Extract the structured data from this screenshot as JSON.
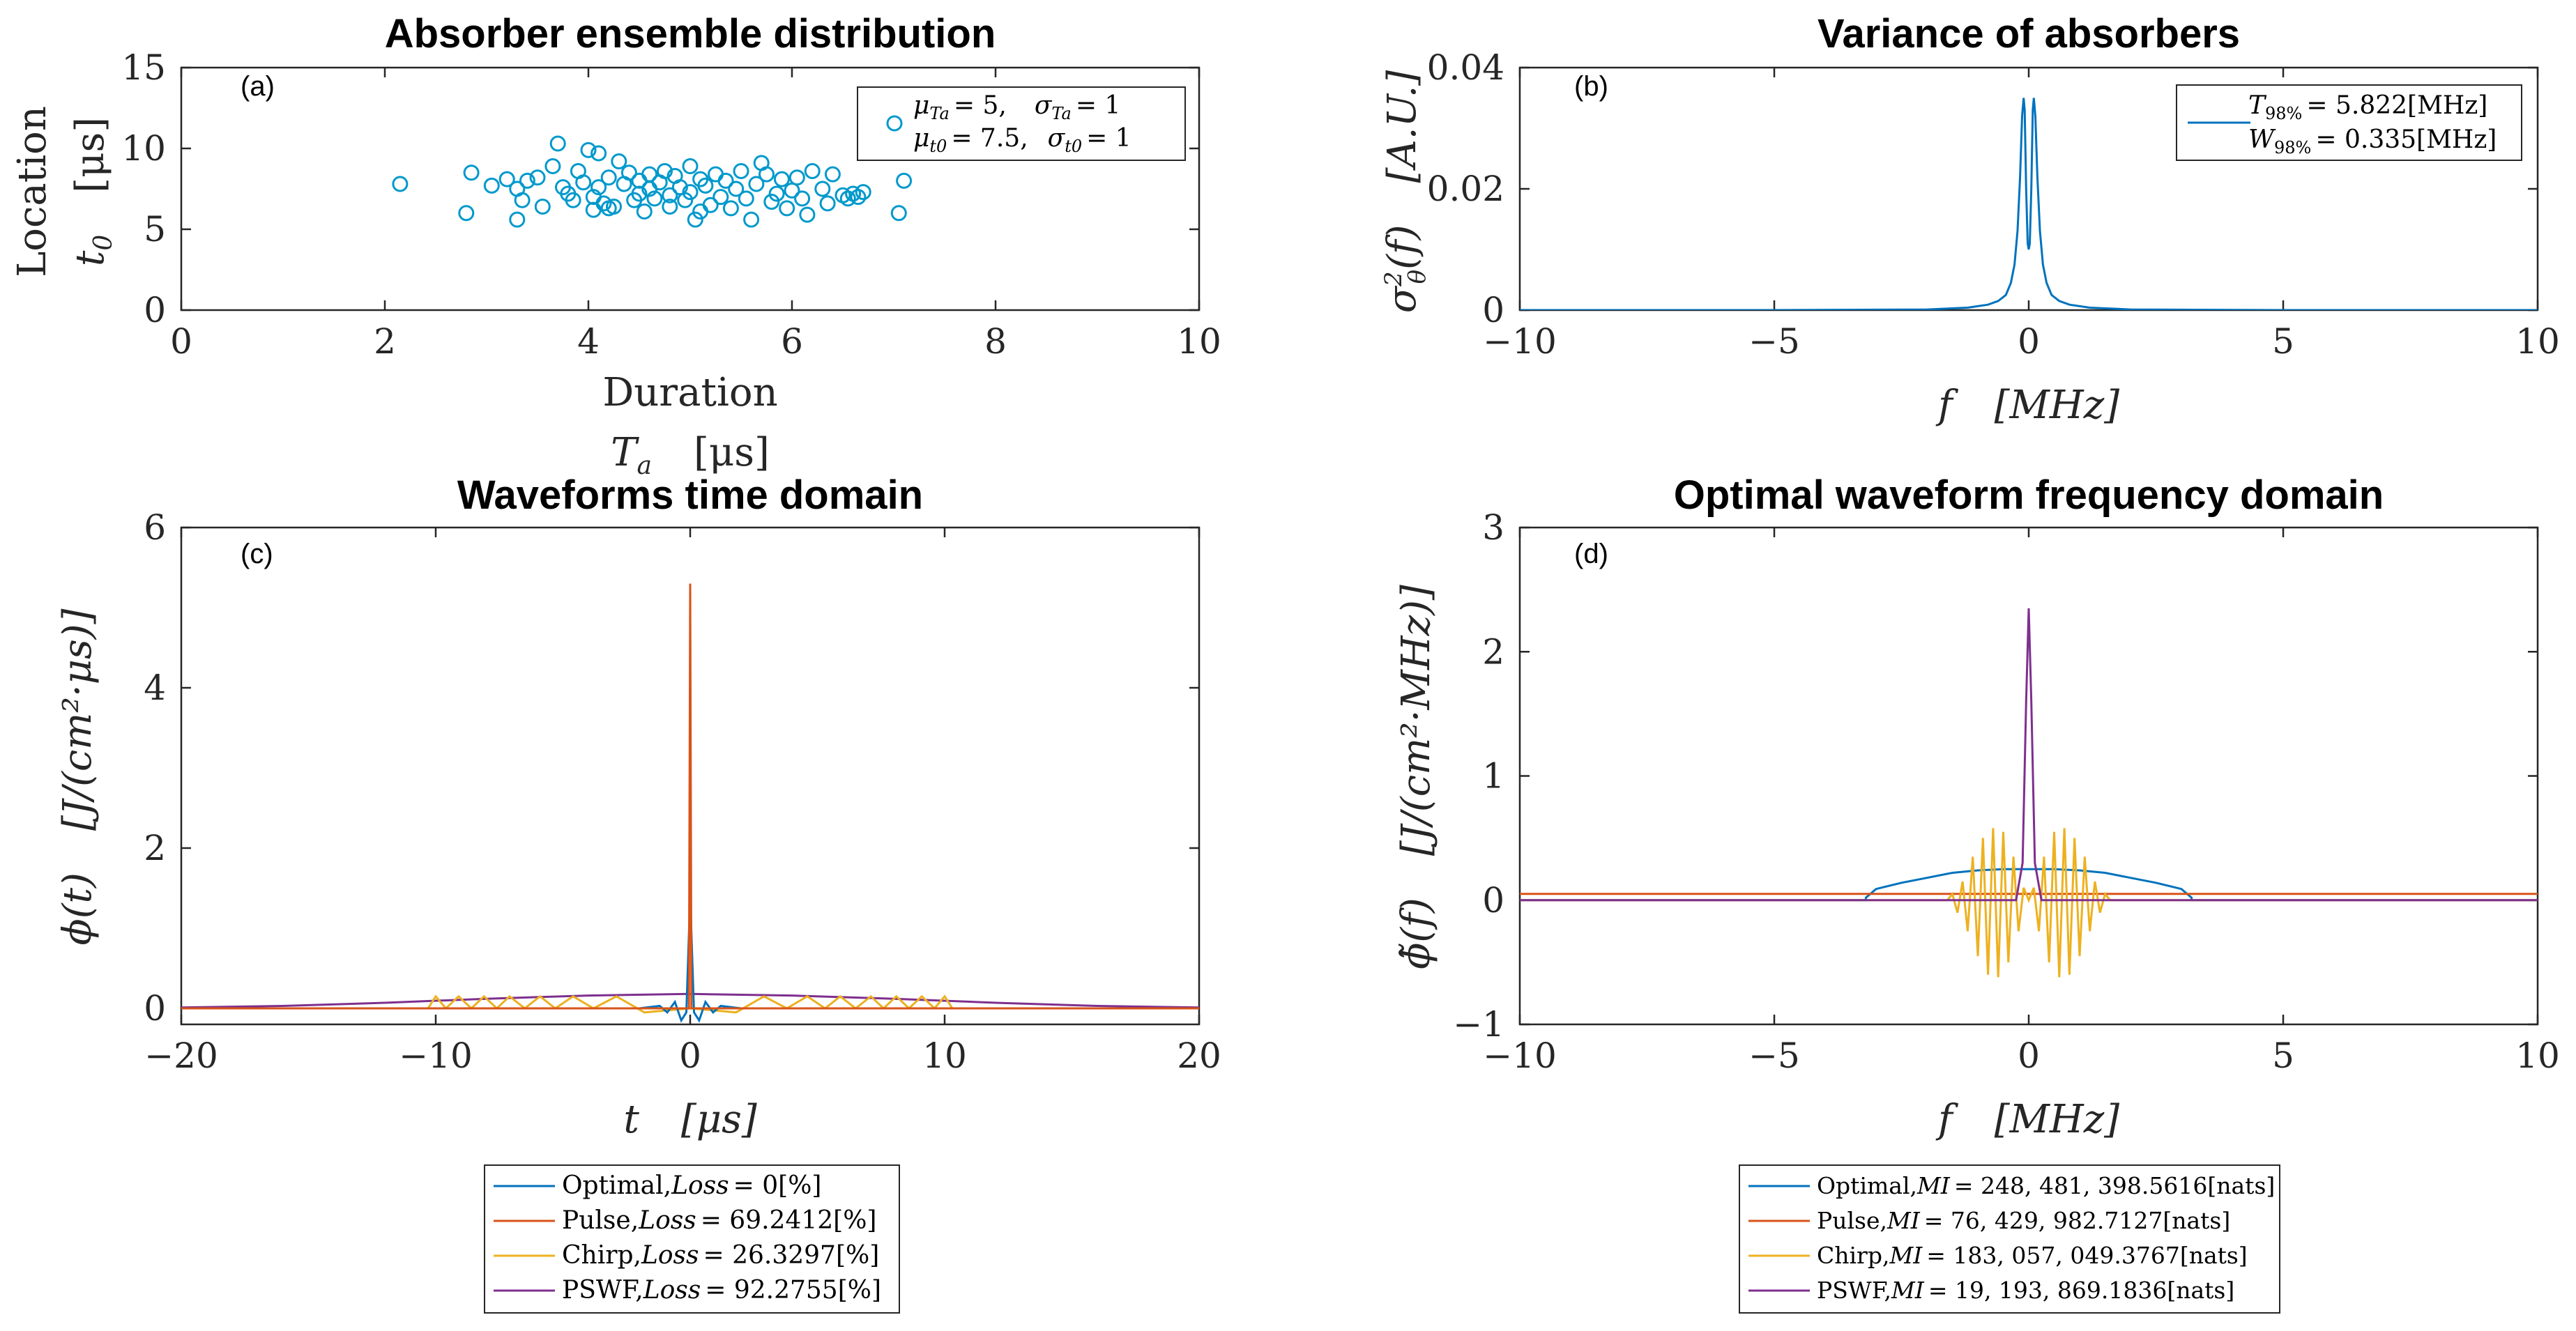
{
  "colors": {
    "optimal": "#0072BD",
    "pulse": "#D95319",
    "chirp": "#EDB120",
    "pswf": "#7E2F8E",
    "scatter": "#0099CC"
  },
  "chart_data": [
    {
      "type": "scatter",
      "panel": "(a)",
      "title": "Absorber ensemble distribution",
      "xlabel_word": "Duration",
      "xlabel_symbol": "T",
      "xlabel_sub": "a",
      "xlabel_unit": "[μs]",
      "ylabel_word": "Location",
      "ylabel_symbol": "t",
      "ylabel_sub": "0",
      "ylabel_unit": "[μs]",
      "xlim": [
        0,
        10
      ],
      "ylim": [
        0,
        15
      ],
      "xticks": [
        "0",
        "2",
        "4",
        "6",
        "8",
        "10"
      ],
      "yticks": [
        "0",
        "5",
        "10",
        "15"
      ],
      "legend": {
        "line1_a": "μ",
        "line1_a_sub": "Ta",
        "line1_a_val": "= 5,",
        "line1_b": "σ",
        "line1_b_sub": "Ta",
        "line1_b_val": "= 1",
        "line2_a": "μ",
        "line2_a_sub": "t0",
        "line2_a_val": "= 7.5,",
        "line2_b": "σ",
        "line2_b_sub": "t0",
        "line2_b_val": "= 1"
      },
      "points": [
        [
          2.15,
          7.8
        ],
        [
          2.8,
          6.0
        ],
        [
          2.85,
          8.5
        ],
        [
          3.05,
          7.7
        ],
        [
          3.2,
          8.1
        ],
        [
          3.3,
          7.5
        ],
        [
          3.3,
          5.6
        ],
        [
          3.35,
          6.8
        ],
        [
          3.4,
          8.0
        ],
        [
          3.5,
          8.2
        ],
        [
          3.55,
          6.4
        ],
        [
          3.65,
          8.9
        ],
        [
          3.7,
          10.3
        ],
        [
          3.75,
          7.6
        ],
        [
          3.8,
          7.2
        ],
        [
          3.85,
          6.8
        ],
        [
          3.9,
          8.6
        ],
        [
          3.95,
          7.9
        ],
        [
          4.0,
          9.9
        ],
        [
          4.05,
          7.0
        ],
        [
          4.05,
          6.2
        ],
        [
          4.1,
          9.7
        ],
        [
          4.1,
          7.6
        ],
        [
          4.15,
          6.6
        ],
        [
          4.2,
          6.3
        ],
        [
          4.2,
          8.2
        ],
        [
          4.25,
          6.4
        ],
        [
          4.3,
          9.2
        ],
        [
          4.35,
          7.8
        ],
        [
          4.4,
          8.5
        ],
        [
          4.45,
          6.8
        ],
        [
          4.5,
          7.2
        ],
        [
          4.5,
          8.0
        ],
        [
          4.55,
          6.1
        ],
        [
          4.6,
          7.5
        ],
        [
          4.6,
          8.4
        ],
        [
          4.65,
          6.9
        ],
        [
          4.7,
          7.9
        ],
        [
          4.75,
          8.6
        ],
        [
          4.8,
          7.1
        ],
        [
          4.8,
          6.4
        ],
        [
          4.85,
          8.3
        ],
        [
          4.9,
          7.6
        ],
        [
          4.95,
          6.8
        ],
        [
          5.0,
          8.9
        ],
        [
          5.0,
          7.3
        ],
        [
          5.05,
          5.6
        ],
        [
          5.1,
          6.1
        ],
        [
          5.1,
          8.1
        ],
        [
          5.15,
          7.7
        ],
        [
          5.2,
          6.5
        ],
        [
          5.25,
          8.4
        ],
        [
          5.3,
          7.0
        ],
        [
          5.35,
          8.0
        ],
        [
          5.4,
          6.3
        ],
        [
          5.45,
          7.5
        ],
        [
          5.5,
          8.6
        ],
        [
          5.55,
          6.9
        ],
        [
          5.6,
          5.6
        ],
        [
          5.65,
          7.8
        ],
        [
          5.7,
          9.1
        ],
        [
          5.75,
          8.4
        ],
        [
          5.8,
          6.7
        ],
        [
          5.85,
          7.2
        ],
        [
          5.9,
          8.1
        ],
        [
          5.95,
          6.3
        ],
        [
          6.0,
          7.4
        ],
        [
          6.05,
          8.2
        ],
        [
          6.1,
          6.9
        ],
        [
          6.15,
          5.9
        ],
        [
          6.2,
          8.6
        ],
        [
          6.3,
          7.5
        ],
        [
          6.35,
          6.6
        ],
        [
          6.4,
          8.4
        ],
        [
          6.5,
          7.1
        ],
        [
          6.55,
          6.9
        ],
        [
          6.6,
          7.2
        ],
        [
          6.65,
          7.0
        ],
        [
          6.7,
          7.3
        ],
        [
          7.05,
          6.0
        ],
        [
          7.1,
          8.0
        ]
      ]
    },
    {
      "type": "line",
      "panel": "(b)",
      "title": "Variance of absorbers",
      "xlabel_symbol": "f",
      "xlabel_unit": "[MHz]",
      "ylabel_symbol": "σ",
      "ylabel_sup": "2",
      "ylabel_sub": "θ",
      "ylabel_arg": "(f)",
      "ylabel_unit": "[A.U.]",
      "xlim": [
        -10,
        10
      ],
      "ylim": [
        0,
        0.04
      ],
      "xticks": [
        "−10",
        "−5",
        "0",
        "5",
        "10"
      ],
      "yticks": [
        "0",
        "0.02",
        "0.04"
      ],
      "legend": {
        "line1_sym": "T",
        "line1_sub": "98%",
        "line1_val": "= 5.822[MHz]",
        "line2_sym": "W",
        "line2_sub": "98%",
        "line2_val": "= 0.335[MHz]"
      },
      "series": [
        {
          "name": "variance",
          "x": [
            -10,
            -5,
            -2,
            -1.2,
            -0.8,
            -0.6,
            -0.45,
            -0.35,
            -0.28,
            -0.22,
            -0.17,
            -0.13,
            -0.1,
            -0.08,
            -0.05,
            -0.02,
            0,
            0.02,
            0.05,
            0.08,
            0.1,
            0.13,
            0.17,
            0.22,
            0.28,
            0.35,
            0.45,
            0.6,
            0.8,
            1.2,
            2,
            5,
            10
          ],
          "values": [
            0,
            0,
            0.0001,
            0.0004,
            0.0009,
            0.0015,
            0.0025,
            0.0045,
            0.0075,
            0.013,
            0.022,
            0.032,
            0.035,
            0.033,
            0.02,
            0.011,
            0.01,
            0.011,
            0.02,
            0.033,
            0.035,
            0.032,
            0.022,
            0.013,
            0.0075,
            0.0045,
            0.0025,
            0.0015,
            0.0009,
            0.0004,
            0.0001,
            0,
            0
          ]
        }
      ]
    },
    {
      "type": "line",
      "panel": "(c)",
      "title": "Waveforms time domain",
      "xlabel_symbol": "t",
      "xlabel_unit": "[μs]",
      "ylabel_symbol": "ϕ",
      "ylabel_arg": "(t)",
      "ylabel_unit": "[J/(cm²·μs)]",
      "xlim": [
        -20,
        20
      ],
      "ylim": [
        -0.2,
        6
      ],
      "xticks": [
        "−20",
        "−10",
        "0",
        "10",
        "20"
      ],
      "yticks": [
        "0",
        "2",
        "4",
        "6"
      ],
      "legend": [
        {
          "name": "Optimal",
          "text": "Optimal,",
          "metric": "Loss",
          "value": "= 0[%]"
        },
        {
          "name": "Pulse",
          "text": "Pulse,",
          "metric": "Loss",
          "value": "= 69.2412[%]"
        },
        {
          "name": "Chirp",
          "text": "Chirp,",
          "metric": "Loss",
          "value": "= 26.3297[%]"
        },
        {
          "name": "PSWF",
          "text": "PSWF,",
          "metric": "Loss",
          "value": "= 92.2755[%]"
        }
      ],
      "series": [
        {
          "name": "PSWF",
          "x": [
            -20,
            -16,
            -12,
            -8,
            -4,
            0,
            4,
            8,
            12,
            16,
            20
          ],
          "values": [
            0.01,
            0.03,
            0.07,
            0.12,
            0.16,
            0.18,
            0.16,
            0.12,
            0.07,
            0.03,
            0.01
          ]
        },
        {
          "name": "Chirp",
          "x": [
            -20,
            -10.3,
            -10.0,
            -9.6,
            -9.1,
            -8.6,
            -8.1,
            -7.6,
            -7.1,
            -6.5,
            -5.9,
            -5.3,
            -4.6,
            -3.8,
            -2.9,
            -1.8,
            0,
            1.8,
            2.9,
            3.8,
            4.6,
            5.3,
            5.9,
            6.5,
            7.1,
            7.6,
            8.1,
            8.6,
            9.1,
            9.6,
            10.0,
            10.3,
            20
          ],
          "values": [
            0,
            0,
            0.15,
            0,
            0.15,
            0,
            0.15,
            0,
            0.15,
            0,
            0.15,
            0,
            0.15,
            0,
            0.15,
            -0.05,
            0,
            -0.05,
            0.15,
            0,
            0.15,
            0,
            0.15,
            0,
            0.15,
            0,
            0.15,
            0,
            0.15,
            0,
            0.15,
            0,
            0
          ]
        },
        {
          "name": "Optimal",
          "x": [
            -20,
            -2,
            -1.2,
            -0.9,
            -0.6,
            -0.35,
            -0.15,
            0,
            0.15,
            0.35,
            0.6,
            0.9,
            1.2,
            2,
            20
          ],
          "values": [
            0,
            0,
            0.03,
            -0.05,
            0.08,
            -0.15,
            -0.05,
            1.4,
            -0.05,
            -0.15,
            0.08,
            -0.05,
            0.03,
            0,
            0
          ]
        },
        {
          "name": "Pulse",
          "x": [
            -20,
            -0.2,
            -0.05,
            0,
            0.05,
            0.2,
            20
          ],
          "values": [
            0,
            0,
            0,
            5.3,
            0,
            0,
            0
          ]
        }
      ]
    },
    {
      "type": "line",
      "panel": "(d)",
      "title": "Optimal waveform frequency domain",
      "xlabel_symbol": "f",
      "xlabel_unit": "[MHz]",
      "ylabel_symbol": "ϕ̃",
      "ylabel_arg": "(f)",
      "ylabel_unit": "[J/(cm²·MHz)]",
      "xlim": [
        -10,
        10
      ],
      "ylim": [
        -1,
        3
      ],
      "xticks": [
        "−10",
        "−5",
        "0",
        "5",
        "10"
      ],
      "yticks": [
        "−1",
        "0",
        "1",
        "2",
        "3"
      ],
      "legend": [
        {
          "name": "Optimal",
          "text": "Optimal,",
          "metric": "MI",
          "value": "= 248, 481, 398.5616[nats]"
        },
        {
          "name": "Pulse",
          "text": "Pulse,",
          "metric": "MI",
          "value": "= 76, 429, 982.7127[nats]"
        },
        {
          "name": "Chirp",
          "text": "Chirp,",
          "metric": "MI",
          "value": "= 183, 057, 049.3767[nats]"
        },
        {
          "name": "PSWF",
          "text": "PSWF,",
          "metric": "MI",
          "value": "= 19, 193, 869.1836[nats]"
        }
      ],
      "series": [
        {
          "name": "Optimal",
          "x": [
            -10,
            -3.2,
            -3.2,
            -3.0,
            -2.5,
            -2.0,
            -1.5,
            -1.0,
            -0.5,
            0,
            0.5,
            1.0,
            1.5,
            2.0,
            2.5,
            3.0,
            3.2,
            3.2,
            10
          ],
          "values": [
            0,
            0,
            0.02,
            0.09,
            0.14,
            0.18,
            0.22,
            0.24,
            0.25,
            0.25,
            0.25,
            0.24,
            0.22,
            0.18,
            0.14,
            0.09,
            0.02,
            0,
            0
          ]
        },
        {
          "name": "Pulse",
          "x": [
            -10,
            10
          ],
          "values": [
            0.05,
            0.05
          ]
        },
        {
          "name": "Chirp",
          "x": [
            -10,
            -1.6,
            -1.5,
            -1.4,
            -1.3,
            -1.2,
            -1.1,
            -1.0,
            -0.9,
            -0.8,
            -0.7,
            -0.6,
            -0.5,
            -0.4,
            -0.3,
            -0.2,
            -0.1,
            0,
            0.1,
            0.2,
            0.3,
            0.4,
            0.5,
            0.6,
            0.7,
            0.8,
            0.9,
            1.0,
            1.1,
            1.2,
            1.3,
            1.4,
            1.5,
            1.6,
            10
          ],
          "values": [
            0,
            0,
            0.05,
            -0.1,
            0.15,
            -0.25,
            0.35,
            -0.45,
            0.5,
            -0.6,
            0.58,
            -0.62,
            0.55,
            -0.5,
            0.35,
            -0.25,
            0.1,
            0,
            0.1,
            -0.25,
            0.35,
            -0.5,
            0.55,
            -0.62,
            0.58,
            -0.6,
            0.5,
            -0.45,
            0.35,
            -0.25,
            0.15,
            -0.1,
            0.05,
            0,
            0
          ]
        },
        {
          "name": "PSWF",
          "x": [
            -10,
            -0.25,
            -0.12,
            -0.05,
            0,
            0.05,
            0.12,
            0.25,
            10
          ],
          "values": [
            0,
            0,
            0.3,
            1.6,
            2.35,
            1.6,
            0.3,
            0,
            0
          ]
        }
      ]
    }
  ]
}
